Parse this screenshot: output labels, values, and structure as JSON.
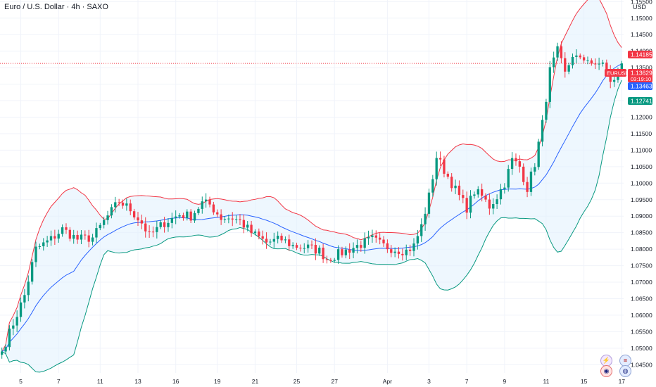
{
  "header": {
    "title": "Euro / U.S. Dollar · 4h · SAXO",
    "currency": "USD"
  },
  "colors": {
    "up": "#089981",
    "down": "#f23645",
    "middle_band": "#2962ff",
    "upper_band": "#f23645",
    "lower_band": "#089981",
    "band_fill": "#e3f2fd",
    "last_price_line": "#f23645"
  },
  "badges": {
    "upper_band_value": "1.14185",
    "symbol": "EURUSD",
    "last_price": "1.13629",
    "countdown": "03:19:10",
    "middle_band_value": "1.13463",
    "lower_band_value": "1.12741"
  },
  "icons": [
    "lightning-icon",
    "us-flag-icon",
    "eu-us-flag-icon",
    "globe-icon"
  ],
  "chart_data": {
    "type": "candlestick",
    "symbol": "EURUSD",
    "timeframe": "4h",
    "indicator": "Bollinger Bands",
    "ylim": [
      1.0425,
      1.1555
    ],
    "y_ticks": [
      "1.04500",
      "1.05000",
      "1.05500",
      "1.06000",
      "1.06500",
      "1.07000",
      "1.07500",
      "1.08000",
      "1.08500",
      "1.09000",
      "1.09500",
      "1.10000",
      "1.10500",
      "1.11000",
      "1.11500",
      "1.12000",
      "1.12500",
      "1.13000",
      "1.13500",
      "1.14000",
      "1.14500",
      "1.15000",
      "1.15500"
    ],
    "x_ticks": [
      {
        "label": "5",
        "bar": 5
      },
      {
        "label": "7",
        "bar": 15
      },
      {
        "label": "11",
        "bar": 26
      },
      {
        "label": "13",
        "bar": 36
      },
      {
        "label": "16",
        "bar": 46
      },
      {
        "label": "19",
        "bar": 57
      },
      {
        "label": "21",
        "bar": 67
      },
      {
        "label": "25",
        "bar": 78
      },
      {
        "label": "27",
        "bar": 88
      },
      {
        "label": "Apr",
        "bar": 102
      },
      {
        "label": "3",
        "bar": 113
      },
      {
        "label": "7",
        "bar": 123
      },
      {
        "label": "9",
        "bar": 133
      },
      {
        "label": "11",
        "bar": 144
      },
      {
        "label": "15",
        "bar": 154
      },
      {
        "label": "17",
        "bar": 164
      }
    ],
    "last_price": 1.13629,
    "bollinger": {
      "upper": 1.14185,
      "middle": 1.13463,
      "lower": 1.12741
    },
    "anchors": [
      [
        0,
        1.049
      ],
      [
        6,
        1.066
      ],
      [
        9,
        1.08
      ],
      [
        13,
        1.083
      ],
      [
        16,
        1.086
      ],
      [
        20,
        1.083
      ],
      [
        24,
        1.0835
      ],
      [
        28,
        1.09
      ],
      [
        31,
        1.0945
      ],
      [
        34,
        1.092
      ],
      [
        37,
        1.088
      ],
      [
        39,
        1.084
      ],
      [
        43,
        1.088
      ],
      [
        47,
        1.0905
      ],
      [
        50,
        1.09
      ],
      [
        53,
        1.094
      ],
      [
        55,
        1.0935
      ],
      [
        58,
        1.0895
      ],
      [
        61,
        1.0895
      ],
      [
        63,
        1.0885
      ],
      [
        66,
        1.085
      ],
      [
        70,
        1.082
      ],
      [
        74,
        1.083
      ],
      [
        77,
        1.081
      ],
      [
        81,
        1.0805
      ],
      [
        84,
        1.0795
      ],
      [
        86,
        1.077
      ],
      [
        89,
        1.0785
      ],
      [
        92,
        1.08
      ],
      [
        95,
        1.0815
      ],
      [
        98,
        1.083
      ],
      [
        101,
        1.081
      ],
      [
        104,
        1.08
      ],
      [
        107,
        1.0795
      ],
      [
        109,
        1.081
      ],
      [
        111,
        1.087
      ],
      [
        113,
        1.096
      ],
      [
        115,
        1.108
      ],
      [
        117,
        1.104
      ],
      [
        119,
        1.1
      ],
      [
        121,
        1.096
      ],
      [
        123,
        1.0925
      ],
      [
        125,
        1.0975
      ],
      [
        127,
        1.096
      ],
      [
        129,
        1.093
      ],
      [
        131,
        1.096
      ],
      [
        133,
        1.1
      ],
      [
        135,
        1.107
      ],
      [
        137,
        1.105
      ],
      [
        139,
        1.0985
      ],
      [
        141,
        1.106
      ],
      [
        143,
        1.118
      ],
      [
        145,
        1.134
      ],
      [
        147,
        1.14
      ],
      [
        149,
        1.133
      ],
      [
        151,
        1.139
      ],
      [
        153,
        1.137
      ],
      [
        155,
        1.138
      ],
      [
        157,
        1.135
      ],
      [
        159,
        1.137
      ],
      [
        161,
        1.13
      ],
      [
        163,
        1.1335
      ],
      [
        164,
        1.1363
      ]
    ]
  }
}
